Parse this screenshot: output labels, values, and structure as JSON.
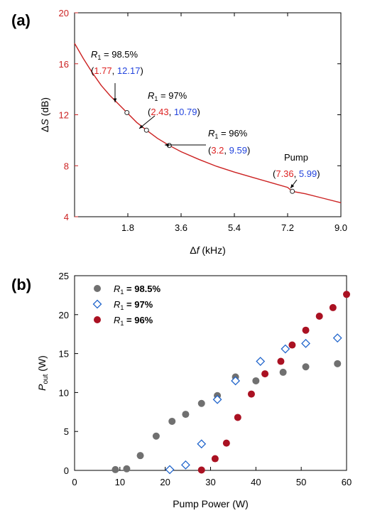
{
  "chart_data": [
    {
      "type": "line",
      "panel_label": "(a)",
      "xlabel_sym": "Δ",
      "xlabel_var": "f",
      "xlabel_unit": " (kHz)",
      "ylabel_sym": "Δ",
      "ylabel_var": "S",
      "ylabel_unit": " (dB)",
      "xlim": [
        0,
        9.0
      ],
      "ylim": [
        4,
        20
      ],
      "x_ticks": [
        "1.8",
        "3.6",
        "5.4",
        "7.2",
        "9.0"
      ],
      "y_ticks": [
        "4",
        "8",
        "12",
        "16",
        "20"
      ],
      "curve_color": "#cc2222",
      "ylabel_color": "#cc2222",
      "curve": {
        "x": [
          0.0,
          0.3,
          0.6,
          0.9,
          1.2,
          1.5,
          1.77,
          2.1,
          2.43,
          2.8,
          3.2,
          3.6,
          4.2,
          4.8,
          5.4,
          6.0,
          6.6,
          7.2,
          7.36,
          7.8,
          8.4,
          9.0
        ],
        "y": [
          17.6,
          16.4,
          15.3,
          14.3,
          13.5,
          12.8,
          12.17,
          11.4,
          10.79,
          10.15,
          9.59,
          9.1,
          8.5,
          7.95,
          7.5,
          7.1,
          6.7,
          6.3,
          5.99,
          5.8,
          5.45,
          5.1
        ]
      },
      "points": [
        {
          "x": 1.77,
          "y": 12.17
        },
        {
          "x": 2.43,
          "y": 10.79
        },
        {
          "x": 3.2,
          "y": 9.59
        },
        {
          "x": 7.36,
          "y": 5.99
        }
      ],
      "annotations": [
        {
          "title_var": "R",
          "title_sub": "1",
          "title_rest": " = 98.5%",
          "x_val": "1.77",
          "y_val": "12.17"
        },
        {
          "title_var": "R",
          "title_sub": "1",
          "title_rest": " = 97%",
          "x_val": "2.43",
          "y_val": "10.79"
        },
        {
          "title_var": "R",
          "title_sub": "1",
          "title_rest": " = 96%",
          "x_val": "3.2",
          "y_val": "9.59"
        },
        {
          "title_plain": "Pump",
          "x_val": "7.36",
          "y_val": "5.99"
        }
      ],
      "x_color": "#dd2222",
      "y_color": "#2244dd"
    },
    {
      "type": "scatter",
      "panel_label": "(b)",
      "xlabel": "Pump Power (W)",
      "ylabel_var": "P",
      "ylabel_sub": "out",
      "ylabel_unit": " (W)",
      "xlim": [
        0,
        60
      ],
      "ylim": [
        0,
        25
      ],
      "x_ticks": [
        "0",
        "10",
        "20",
        "30",
        "40",
        "50",
        "60"
      ],
      "y_ticks": [
        "0",
        "5",
        "10",
        "15",
        "20",
        "25"
      ],
      "legend_position": "top-left",
      "series": [
        {
          "name_var": "R",
          "name_sub": "1",
          "name_rest": " = 98.5%",
          "marker": "filled-circle",
          "color": "#707070",
          "x": [
            9,
            11.5,
            14.5,
            18,
            21.5,
            24.5,
            28,
            31.5,
            35.5,
            40,
            46,
            51,
            58
          ],
          "y": [
            0.1,
            0.2,
            1.9,
            4.4,
            6.3,
            7.2,
            8.6,
            9.6,
            12.0,
            11.5,
            12.6,
            13.3,
            13.7
          ]
        },
        {
          "name_var": "R",
          "name_sub": "1",
          "name_rest": " = 97%",
          "marker": "open-diamond",
          "color": "#2266cc",
          "x": [
            21,
            24.5,
            28,
            31.5,
            35.5,
            41,
            46.5,
            51,
            58
          ],
          "y": [
            0.1,
            0.7,
            3.4,
            9.1,
            11.5,
            14.0,
            15.6,
            16.3,
            17.0
          ]
        },
        {
          "name_var": "R",
          "name_sub": "1",
          "name_rest": " = 96%",
          "marker": "filled-circle",
          "color": "#aa1122",
          "x": [
            28,
            31,
            33.5,
            36,
            39,
            42,
            45.5,
            48,
            51,
            54,
            57,
            60
          ],
          "y": [
            0.05,
            1.5,
            3.5,
            6.8,
            9.8,
            12.4,
            14.0,
            16.1,
            18.0,
            19.8,
            20.9,
            22.6
          ]
        }
      ]
    }
  ]
}
